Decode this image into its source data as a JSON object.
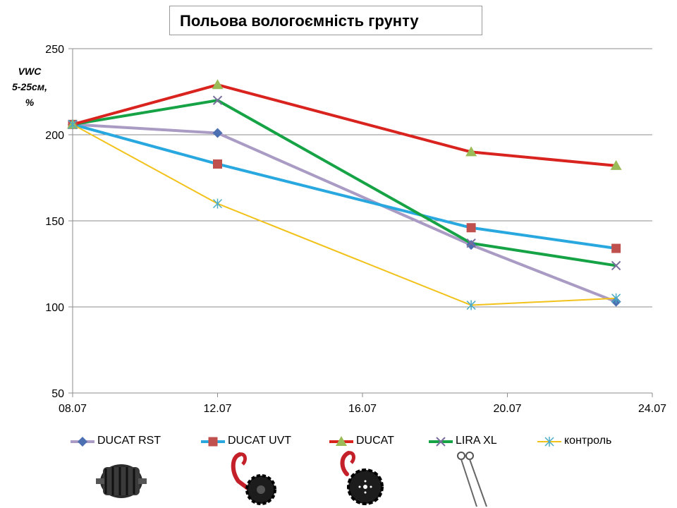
{
  "title": "Польова вологоємність грунту",
  "ylabel_lines": [
    "VWC",
    "5-25см,",
    "%"
  ],
  "colors": {
    "DUCAT RST": "#a99bc4",
    "DUCAT UVT": "#29a8df",
    "DUCAT": "#d9231f",
    "LIRA XL": "#16a346",
    "контроль": "#f2c21b"
  },
  "chart_data": {
    "type": "line",
    "title": "Польова вологоємність грунту",
    "xlabel": "",
    "ylabel": "VWC 5-25см, %",
    "x_ticks": [
      "08.07",
      "12.07",
      "16.07",
      "20.07",
      "24.07"
    ],
    "xlim": [
      "08.07",
      "24.07"
    ],
    "ylim": [
      50,
      250
    ],
    "y_ticks": [
      50,
      100,
      150,
      200,
      250
    ],
    "grid": true,
    "legend": "bottom",
    "series": [
      {
        "name": "DUCAT RST",
        "marker": "diamond",
        "x": [
          "08.07",
          "12.07",
          "19.07",
          "23.07"
        ],
        "values": [
          206,
          201,
          136,
          103
        ]
      },
      {
        "name": "DUCAT UVT",
        "marker": "square",
        "x": [
          "08.07",
          "12.07",
          "19.07",
          "23.07"
        ],
        "values": [
          206,
          183,
          146,
          134
        ]
      },
      {
        "name": "DUCAT",
        "marker": "triangle",
        "x": [
          "08.07",
          "12.07",
          "19.07",
          "23.07"
        ],
        "values": [
          206,
          229,
          190,
          182
        ]
      },
      {
        "name": "LIRA XL",
        "marker": "x",
        "x": [
          "08.07",
          "12.07",
          "19.07",
          "23.07"
        ],
        "values": [
          206,
          220,
          137,
          124
        ]
      },
      {
        "name": "контроль",
        "marker": "star",
        "x": [
          "08.07",
          "12.07",
          "19.07",
          "23.07"
        ],
        "values": [
          206,
          160,
          101,
          105
        ]
      }
    ]
  },
  "tools": [
    "cage-roller-icon",
    "spring-tine-disc-icon",
    "spring-tine-disc-icon",
    "twin-tine-icon",
    ""
  ]
}
